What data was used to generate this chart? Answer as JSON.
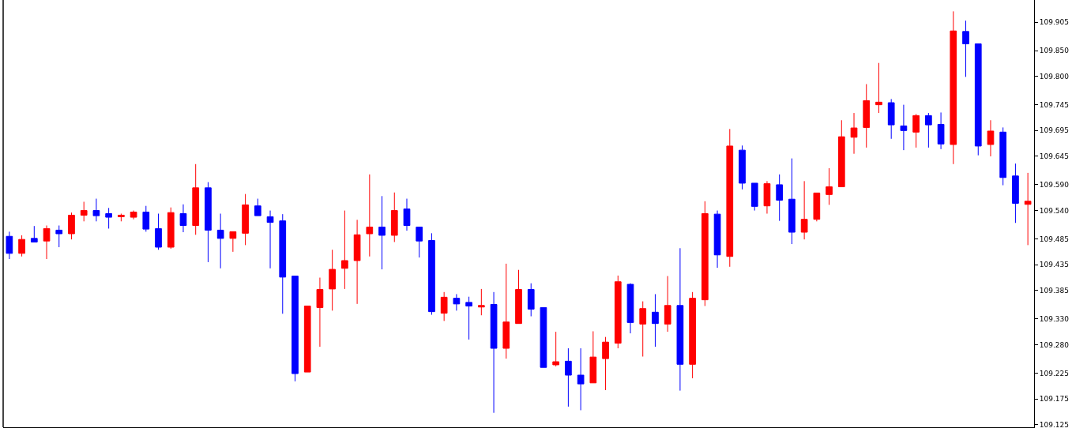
{
  "chart_data": {
    "type": "candlestick",
    "categories": [
      null,
      null,
      null,
      null,
      null,
      null,
      null,
      null,
      null,
      null,
      null,
      null,
      null,
      null,
      null,
      null,
      null,
      null,
      null,
      null,
      null,
      null,
      null,
      null,
      null,
      null,
      null,
      null,
      null,
      null,
      null,
      null,
      null,
      null,
      null,
      null,
      null,
      null,
      null,
      null,
      null,
      null,
      null,
      null,
      null,
      null,
      null,
      null,
      null,
      null,
      null,
      null,
      null,
      null,
      null,
      null,
      null,
      null,
      null,
      null,
      null,
      null,
      null,
      null,
      null,
      null,
      null,
      null,
      null,
      null,
      null,
      null,
      null,
      null,
      null,
      null,
      null,
      null,
      null,
      null,
      null,
      null,
      null
    ],
    "ohlc": [
      [
        109.49,
        109.499,
        109.446,
        109.457
      ],
      [
        109.457,
        109.492,
        109.451,
        109.484
      ],
      [
        109.486,
        109.51,
        109.479,
        109.479
      ],
      [
        109.481,
        109.511,
        109.446,
        109.505
      ],
      [
        109.502,
        109.511,
        109.469,
        109.495
      ],
      [
        109.495,
        109.536,
        109.484,
        109.531
      ],
      [
        109.531,
        109.557,
        109.519,
        109.54
      ],
      [
        109.54,
        109.563,
        109.519,
        109.53
      ],
      [
        109.534,
        109.545,
        109.505,
        109.527
      ],
      [
        109.528,
        109.534,
        109.519,
        109.531
      ],
      [
        109.527,
        109.54,
        109.523,
        109.537
      ],
      [
        109.537,
        109.549,
        109.499,
        109.504
      ],
      [
        109.505,
        109.534,
        109.464,
        109.469
      ],
      [
        109.469,
        109.546,
        109.466,
        109.536
      ],
      [
        109.534,
        109.552,
        109.498,
        109.511
      ],
      [
        109.511,
        109.63,
        109.493,
        109.584
      ],
      [
        109.584,
        109.595,
        109.44,
        109.502
      ],
      [
        109.502,
        109.534,
        109.428,
        109.486
      ],
      [
        109.486,
        109.499,
        109.46,
        109.499
      ],
      [
        109.496,
        109.572,
        109.473,
        109.551
      ],
      [
        109.549,
        109.563,
        109.53,
        109.53
      ],
      [
        109.528,
        109.54,
        109.428,
        109.517
      ],
      [
        109.52,
        109.533,
        109.34,
        109.411
      ],
      [
        109.413,
        109.413,
        109.209,
        109.224
      ],
      [
        109.227,
        109.355,
        109.227,
        109.355
      ],
      [
        109.352,
        109.41,
        109.276,
        109.387
      ],
      [
        109.388,
        109.464,
        109.346,
        109.426
      ],
      [
        109.428,
        109.54,
        109.388,
        109.443
      ],
      [
        109.443,
        109.522,
        109.359,
        109.493
      ],
      [
        109.495,
        109.61,
        109.451,
        109.508
      ],
      [
        109.508,
        109.568,
        109.426,
        109.492
      ],
      [
        109.492,
        109.575,
        109.479,
        109.54
      ],
      [
        109.543,
        109.563,
        109.501,
        109.511
      ],
      [
        109.508,
        109.508,
        109.449,
        109.481
      ],
      [
        109.482,
        109.496,
        109.338,
        109.344
      ],
      [
        109.341,
        109.382,
        109.326,
        109.372
      ],
      [
        109.37,
        109.378,
        109.346,
        109.359
      ],
      [
        109.362,
        109.373,
        109.29,
        109.355
      ],
      [
        109.353,
        109.388,
        109.337,
        109.356
      ],
      [
        109.358,
        109.382,
        109.148,
        109.273
      ],
      [
        109.273,
        109.437,
        109.253,
        109.324
      ],
      [
        109.321,
        109.425,
        109.321,
        109.387
      ],
      [
        109.387,
        109.399,
        109.335,
        109.349
      ],
      [
        109.352,
        109.352,
        109.236,
        109.236
      ],
      [
        109.241,
        109.305,
        109.238,
        109.247
      ],
      [
        109.248,
        109.273,
        109.16,
        109.221
      ],
      [
        109.221,
        109.273,
        109.153,
        109.204
      ],
      [
        109.206,
        109.306,
        109.206,
        109.256
      ],
      [
        109.253,
        109.295,
        109.192,
        109.285
      ],
      [
        109.283,
        109.414,
        109.273,
        109.402
      ],
      [
        109.397,
        109.399,
        109.302,
        109.323
      ],
      [
        109.32,
        109.364,
        109.257,
        109.35
      ],
      [
        109.343,
        109.378,
        109.276,
        109.321
      ],
      [
        109.32,
        109.413,
        109.305,
        109.356
      ],
      [
        109.356,
        109.467,
        109.191,
        109.242
      ],
      [
        109.242,
        109.382,
        109.215,
        109.37
      ],
      [
        109.367,
        109.558,
        109.355,
        109.534
      ],
      [
        109.533,
        109.54,
        109.429,
        109.454
      ],
      [
        109.451,
        109.698,
        109.431,
        109.665
      ],
      [
        109.657,
        109.666,
        109.581,
        109.593
      ],
      [
        109.593,
        109.593,
        109.54,
        109.548
      ],
      [
        109.549,
        109.597,
        109.534,
        109.592
      ],
      [
        109.59,
        109.61,
        109.52,
        109.56
      ],
      [
        109.562,
        109.641,
        109.475,
        109.498
      ],
      [
        109.498,
        109.597,
        109.484,
        109.523
      ],
      [
        109.523,
        109.574,
        109.519,
        109.574
      ],
      [
        109.571,
        109.622,
        109.551,
        109.586
      ],
      [
        109.586,
        109.715,
        109.586,
        109.683
      ],
      [
        109.682,
        109.729,
        109.65,
        109.7
      ],
      [
        109.701,
        109.785,
        109.662,
        109.753
      ],
      [
        109.745,
        109.826,
        109.729,
        109.75
      ],
      [
        109.749,
        109.756,
        109.679,
        109.706
      ],
      [
        109.704,
        109.745,
        109.657,
        109.695
      ],
      [
        109.692,
        109.727,
        109.662,
        109.724
      ],
      [
        109.724,
        109.729,
        109.662,
        109.706
      ],
      [
        109.707,
        109.73,
        109.659,
        109.669
      ],
      [
        109.668,
        109.926,
        109.63,
        109.888
      ],
      [
        109.887,
        109.908,
        109.799,
        109.863
      ],
      [
        109.863,
        109.863,
        109.647,
        109.665
      ],
      [
        109.668,
        109.715,
        109.645,
        109.694
      ],
      [
        109.692,
        109.701,
        109.589,
        109.604
      ],
      [
        109.607,
        109.631,
        109.516,
        109.554
      ],
      [
        109.552,
        109.613,
        109.473,
        109.558
      ]
    ],
    "colors": [
      "#0000ff",
      "#ff0000",
      "#0000ff",
      "#ff0000",
      "#0000ff",
      "#ff0000",
      "#ff0000",
      "#0000ff",
      "#0000ff",
      "#ff0000",
      "#ff0000",
      "#0000ff",
      "#0000ff",
      "#ff0000",
      "#0000ff",
      "#ff0000",
      "#0000ff",
      "#0000ff",
      "#ff0000",
      "#ff0000",
      "#0000ff",
      "#0000ff",
      "#0000ff",
      "#0000ff",
      "#ff0000",
      "#ff0000",
      "#ff0000",
      "#ff0000",
      "#ff0000",
      "#ff0000",
      "#0000ff",
      "#ff0000",
      "#0000ff",
      "#0000ff",
      "#0000ff",
      "#ff0000",
      "#0000ff",
      "#0000ff",
      "#ff0000",
      "#0000ff",
      "#ff0000",
      "#ff0000",
      "#0000ff",
      "#0000ff",
      "#ff0000",
      "#0000ff",
      "#0000ff",
      "#ff0000",
      "#ff0000",
      "#ff0000",
      "#0000ff",
      "#ff0000",
      "#0000ff",
      "#ff0000",
      "#0000ff",
      "#ff0000",
      "#ff0000",
      "#0000ff",
      "#ff0000",
      "#0000ff",
      "#0000ff",
      "#ff0000",
      "#0000ff",
      "#0000ff",
      "#ff0000",
      "#ff0000",
      "#ff0000",
      "#ff0000",
      "#ff0000",
      "#ff0000",
      "#ff0000",
      "#0000ff",
      "#0000ff",
      "#ff0000",
      "#0000ff",
      "#0000ff",
      "#ff0000",
      "#0000ff",
      "#0000ff",
      "#ff0000",
      "#0000ff",
      "#0000ff",
      "#ff0000"
    ],
    "ylim": [
      109.12,
      109.948
    ],
    "yticks": [
      {
        "value": 109.905,
        "label": "109.905"
      },
      {
        "value": 109.85,
        "label": "109.850"
      },
      {
        "value": 109.8,
        "label": "109.800"
      },
      {
        "value": 109.745,
        "label": "109.745"
      },
      {
        "value": 109.695,
        "label": "109.695"
      },
      {
        "value": 109.645,
        "label": "109.645"
      },
      {
        "value": 109.59,
        "label": "109.590"
      },
      {
        "value": 109.54,
        "label": "109.540"
      },
      {
        "value": 109.485,
        "label": "109.485"
      },
      {
        "value": 109.435,
        "label": "109.435"
      },
      {
        "value": 109.385,
        "label": "109.385"
      },
      {
        "value": 109.33,
        "label": "109.330"
      },
      {
        "value": 109.28,
        "label": "109.280"
      },
      {
        "value": 109.225,
        "label": "109.225"
      },
      {
        "value": 109.175,
        "label": "109.175"
      },
      {
        "value": 109.125,
        "label": "109.125"
      }
    ],
    "tick_labels": "y"
  }
}
